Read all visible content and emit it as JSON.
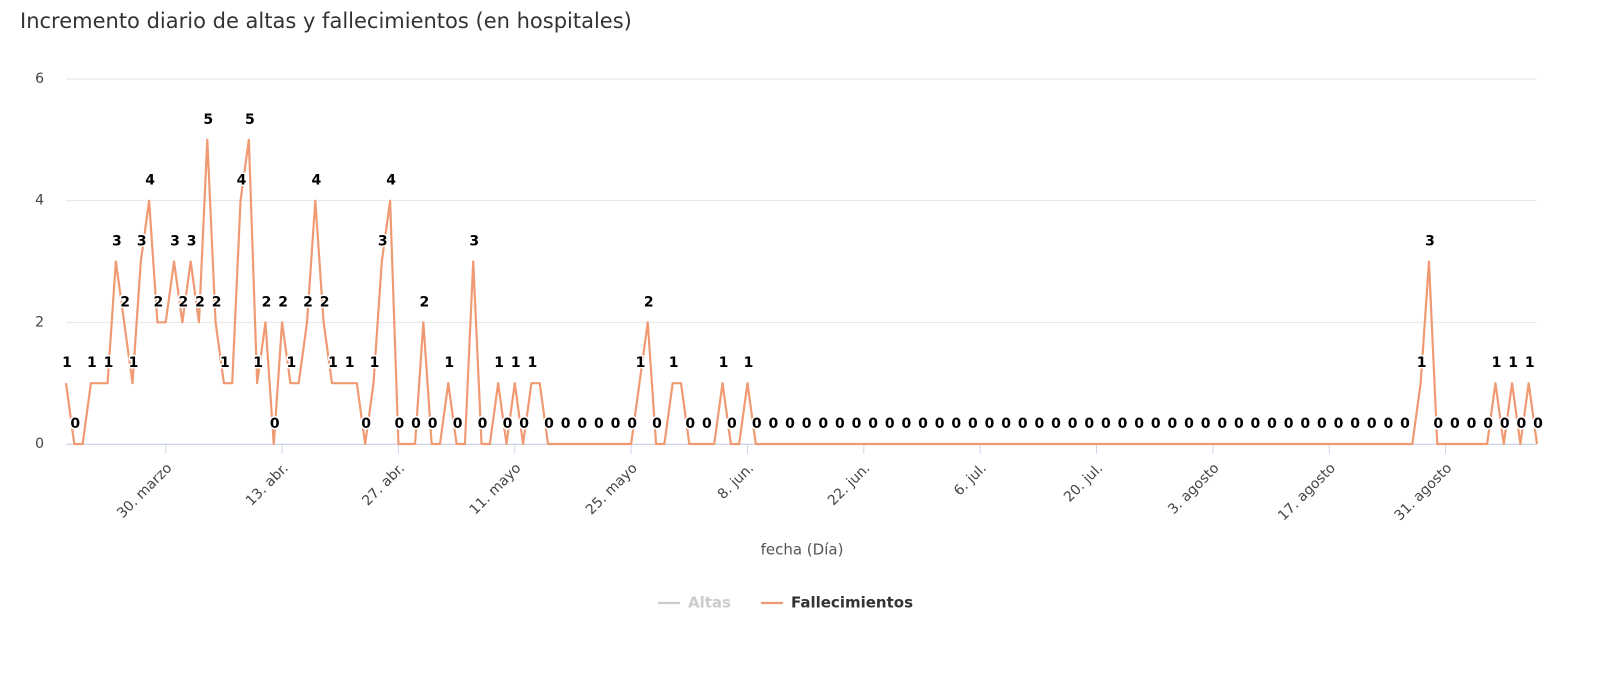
{
  "chart_data": {
    "type": "line",
    "title": "Incremento diario de altas y fallecimientos (en hospitales)",
    "xlabel": "fecha (Día)",
    "categories": [
      null,
      null,
      null,
      null,
      null,
      null,
      null,
      null,
      null,
      null,
      null,
      null,
      "30. marzo",
      null,
      null,
      null,
      null,
      null,
      null,
      null,
      null,
      null,
      null,
      null,
      null,
      null,
      "13. abr.",
      null,
      null,
      null,
      null,
      null,
      null,
      null,
      null,
      null,
      null,
      null,
      null,
      null,
      "27. abr.",
      null,
      null,
      null,
      null,
      null,
      null,
      null,
      null,
      null,
      null,
      null,
      null,
      null,
      "11. mayo",
      null,
      null,
      null,
      null,
      null,
      null,
      null,
      null,
      null,
      null,
      null,
      null,
      null,
      "25. mayo",
      null,
      null,
      null,
      null,
      null,
      null,
      null,
      null,
      null,
      null,
      null,
      null,
      null,
      "8. jun.",
      null,
      null,
      null,
      null,
      null,
      null,
      null,
      null,
      null,
      null,
      null,
      null,
      null,
      "22. jun.",
      null,
      null,
      null,
      null,
      null,
      null,
      null,
      null,
      null,
      null,
      null,
      null,
      null,
      "6. jul.",
      null,
      null,
      null,
      null,
      null,
      null,
      null,
      null,
      null,
      null,
      null,
      null,
      null,
      "20. jul.",
      null,
      null,
      null,
      null,
      null,
      null,
      null,
      null,
      null,
      null,
      null,
      null,
      null,
      "3. agosto",
      null,
      null,
      null,
      null,
      null,
      null,
      null,
      null,
      null,
      null,
      null,
      null,
      null,
      "17. agosto",
      null,
      null,
      null,
      null,
      null,
      null,
      null,
      null,
      null,
      null,
      null,
      null,
      null,
      "31. agosto",
      null,
      null,
      null,
      null,
      null,
      null,
      null,
      null,
      null,
      null,
      null
    ],
    "series": [
      {
        "name": "Altas",
        "color": "#cccccc",
        "visible": false
      },
      {
        "name": "Fallecimientos",
        "color": "#f09a73",
        "visible": true,
        "values": [
          1,
          0,
          0,
          1,
          1,
          1,
          3,
          2,
          1,
          3,
          4,
          2,
          2,
          3,
          2,
          3,
          2,
          5,
          2,
          1,
          1,
          4,
          5,
          1,
          2,
          0,
          2,
          1,
          1,
          2,
          4,
          2,
          1,
          1,
          1,
          1,
          0,
          1,
          3,
          4,
          0,
          0,
          0,
          2,
          0,
          0,
          1,
          0,
          0,
          3,
          0,
          0,
          1,
          0,
          1,
          0,
          1,
          1,
          0,
          0,
          0,
          0,
          0,
          0,
          0,
          0,
          0,
          0,
          0,
          1,
          2,
          0,
          0,
          1,
          1,
          0,
          0,
          0,
          0,
          1,
          0,
          0,
          1,
          0,
          0,
          0,
          0,
          0,
          0,
          0,
          0,
          0,
          0,
          0,
          0,
          0,
          0,
          0,
          0,
          0,
          0,
          0,
          0,
          0,
          0,
          0,
          0,
          0,
          0,
          0,
          0,
          0,
          0,
          0,
          0,
          0,
          0,
          0,
          0,
          0,
          0,
          0,
          0,
          0,
          0,
          0,
          0,
          0,
          0,
          0,
          0,
          0,
          0,
          0,
          0,
          0,
          0,
          0,
          0,
          0,
          0,
          0,
          0,
          0,
          0,
          0,
          0,
          0,
          0,
          0,
          0,
          0,
          0,
          0,
          0,
          0,
          0,
          0,
          0,
          0,
          0,
          0,
          0,
          1,
          3,
          0,
          0,
          0,
          0,
          0,
          0,
          0,
          1,
          0,
          1,
          0,
          1,
          0
        ]
      }
    ],
    "ylim": [
      0,
      6
    ],
    "yticks": [
      0,
      2,
      4,
      6
    ],
    "grid": true,
    "data_labels": true,
    "legend": "bottom"
  }
}
